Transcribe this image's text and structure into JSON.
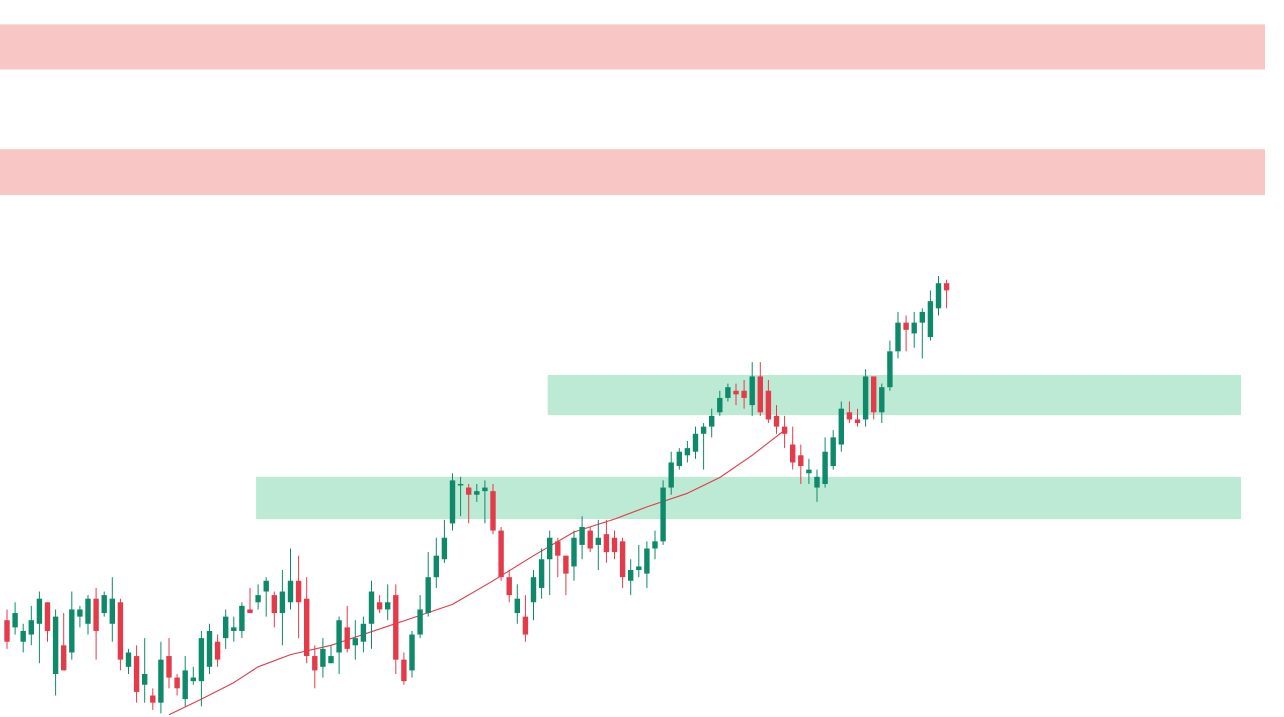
{
  "colors": {
    "background": "#ffffff",
    "bull": "#0e8a6a",
    "bear": "#e43b4b",
    "resistance_zone": "#f9c3c3",
    "support_zone": "#b6e8cf",
    "moving_average": "#e23a4d"
  },
  "chart_data": {
    "type": "candlestick",
    "x_unit": "bar index",
    "ylim": [
      0,
      100
    ],
    "grid": false,
    "axes_visible": false,
    "resistance_zones": [
      {
        "y_from": 90.3,
        "y_to": 96.6,
        "x_from": 0,
        "x_to": 157
      },
      {
        "y_from": 72.8,
        "y_to": 79.2,
        "x_from": 0,
        "x_to": 157
      }
    ],
    "support_zones": [
      {
        "y_from": 42.1,
        "y_to": 47.7,
        "x_from": 67,
        "x_to": 154
      },
      {
        "y_from": 27.6,
        "y_to": 33.5,
        "x_from": 31,
        "x_to": 154
      }
    ],
    "moving_average": {
      "x": [
        20,
        24,
        28,
        31,
        35,
        40,
        45,
        50,
        55,
        60,
        65,
        70,
        75,
        79,
        84,
        88,
        92,
        96
      ],
      "y": [
        0.3,
        2.5,
        4.8,
        7.0,
        8.7,
        10.0,
        11.9,
        13.8,
        15.7,
        19.0,
        22.5,
        25.8,
        27.6,
        29.3,
        31.2,
        33.4,
        36.5,
        40.0
      ]
    },
    "candles": [
      [
        15.0,
        9.5,
        13.5,
        10.5
      ],
      [
        16.0,
        11.5,
        12.5,
        14.5
      ],
      [
        13.0,
        9.0,
        10.5,
        12.0
      ],
      [
        15.5,
        10.0,
        11.5,
        13.5
      ],
      [
        17.5,
        7.5,
        13.0,
        16.5
      ],
      [
        16.0,
        10.5,
        16.0,
        12.0
      ],
      [
        15.0,
        3.0,
        6.0,
        14.0
      ],
      [
        14.5,
        8.0,
        10.0,
        6.5
      ],
      [
        17.5,
        8.0,
        9.0,
        15.0
      ],
      [
        15.5,
        12.5,
        14.0,
        15.0
      ],
      [
        17.0,
        11.5,
        13.0,
        16.5
      ],
      [
        18.0,
        8.0,
        16.5,
        12.0
      ],
      [
        17.5,
        14.0,
        14.5,
        17.0
      ],
      [
        19.5,
        10.5,
        13.0,
        16.5
      ],
      [
        16.5,
        6.5,
        16.0,
        8.0
      ],
      [
        9.5,
        6.0,
        7.0,
        9.0
      ],
      [
        10.0,
        2.0,
        8.5,
        3.5
      ],
      [
        11.0,
        2.0,
        4.5,
        6.0
      ],
      [
        4.0,
        1.0,
        3.0,
        2.0
      ],
      [
        10.5,
        0.5,
        2.0,
        8.0
      ],
      [
        11.0,
        4.0,
        8.5,
        5.5
      ],
      [
        6.0,
        3.0,
        5.5,
        4.0
      ],
      [
        8.5,
        1.5,
        2.5,
        6.5
      ],
      [
        7.0,
        4.5,
        5.0,
        5.5
      ],
      [
        12.0,
        1.5,
        5.0,
        11.0
      ],
      [
        13.0,
        6.0,
        7.0,
        12.0
      ],
      [
        11.5,
        7.0,
        10.5,
        8.0
      ],
      [
        15.0,
        9.5,
        11.0,
        14.0
      ],
      [
        14.0,
        10.5,
        12.0,
        12.5
      ],
      [
        16.0,
        11.0,
        12.0,
        15.5
      ],
      [
        18.0,
        14.5,
        15.0,
        14.5
      ],
      [
        18.5,
        15.0,
        16.0,
        17.0
      ],
      [
        19.5,
        14.0,
        17.5,
        19.0
      ],
      [
        17.5,
        12.5,
        17.0,
        14.5
      ],
      [
        20.5,
        10.0,
        14.5,
        17.5
      ],
      [
        23.5,
        15.0,
        16.0,
        19.0
      ],
      [
        22.5,
        11.0,
        19.0,
        16.0
      ],
      [
        19.5,
        7.5,
        16.5,
        8.5
      ],
      [
        10.0,
        4.0,
        8.5,
        6.5
      ],
      [
        11.0,
        5.5,
        7.0,
        9.5
      ],
      [
        10.0,
        7.5,
        7.5,
        8.5
      ],
      [
        14.0,
        6.0,
        9.0,
        13.5
      ],
      [
        15.5,
        9.0,
        12.5,
        9.5
      ],
      [
        13.5,
        8.0,
        10.0,
        11.0
      ],
      [
        14.0,
        9.0,
        10.5,
        13.0
      ],
      [
        19.0,
        9.5,
        13.0,
        17.5
      ],
      [
        17.0,
        14.5,
        16.0,
        15.0
      ],
      [
        18.5,
        13.5,
        15.0,
        16.0
      ],
      [
        18.5,
        6.0,
        17.0,
        8.0
      ],
      [
        9.0,
        4.5,
        8.0,
        5.0
      ],
      [
        12.0,
        5.5,
        6.5,
        11.5
      ],
      [
        17.0,
        11.0,
        11.5,
        15.0
      ],
      [
        23.0,
        14.0,
        14.5,
        19.5
      ],
      [
        25.0,
        18.0,
        19.5,
        22.5
      ],
      [
        27.5,
        21.5,
        22.0,
        25.0
      ],
      [
        34.0,
        26.0,
        27.0,
        33.0
      ],
      [
        33.5,
        28.0,
        32.5,
        32.5
      ],
      [
        32.5,
        27.0,
        32.0,
        31.0
      ],
      [
        32.5,
        30.0,
        31.0,
        31.5
      ],
      [
        33.0,
        27.0,
        31.5,
        32.0
      ],
      [
        32.5,
        25.5,
        31.5,
        26.0
      ],
      [
        26.5,
        19.0,
        26.0,
        19.5
      ],
      [
        20.5,
        16.0,
        19.5,
        17.0
      ],
      [
        18.5,
        13.0,
        14.5,
        16.5
      ],
      [
        17.0,
        10.5,
        14.0,
        11.5
      ],
      [
        20.5,
        13.5,
        16.0,
        19.5
      ],
      [
        23.5,
        16.5,
        18.0,
        22.0
      ],
      [
        26.0,
        17.0,
        22.0,
        25.0
      ],
      [
        25.0,
        19.5,
        24.5,
        22.5
      ],
      [
        22.5,
        17.0,
        22.5,
        20.0
      ],
      [
        26.0,
        19.0,
        21.0,
        25.0
      ],
      [
        28.0,
        22.0,
        24.0,
        26.5
      ],
      [
        26.5,
        23.0,
        26.0,
        23.5
      ],
      [
        27.5,
        20.5,
        24.0,
        25.0
      ],
      [
        27.5,
        21.5,
        25.5,
        23.0
      ],
      [
        26.0,
        22.0,
        25.0,
        23.0
      ],
      [
        25.0,
        18.0,
        24.5,
        19.5
      ],
      [
        22.0,
        17.0,
        19.0,
        20.5
      ],
      [
        24.0,
        19.5,
        20.5,
        21.0
      ],
      [
        24.5,
        18.0,
        20.0,
        23.5
      ],
      [
        26.0,
        22.0,
        23.5,
        24.5
      ],
      [
        33.0,
        24.0,
        24.5,
        32.0
      ],
      [
        37.0,
        31.0,
        32.0,
        35.5
      ],
      [
        37.5,
        34.5,
        35.0,
        37.0
      ],
      [
        38.5,
        35.5,
        36.5,
        37.5
      ],
      [
        40.5,
        36.0,
        37.0,
        39.5
      ],
      [
        41.0,
        34.5,
        39.5,
        40.5
      ],
      [
        43.0,
        39.0,
        40.5,
        42.0
      ],
      [
        45.5,
        42.0,
        42.5,
        44.5
      ],
      [
        46.5,
        44.0,
        44.5,
        46.0
      ],
      [
        46.5,
        43.5,
        45.5,
        45.0
      ],
      [
        47.0,
        43.0,
        45.5,
        44.5
      ],
      [
        49.5,
        42.0,
        43.5,
        47.5
      ],
      [
        49.5,
        42.0,
        47.5,
        42.5
      ],
      [
        47.0,
        41.0,
        45.5,
        41.5
      ],
      [
        43.5,
        39.5,
        42.0,
        40.5
      ],
      [
        42.0,
        37.5,
        40.5,
        39.5
      ],
      [
        40.5,
        34.5,
        38.0,
        35.5
      ],
      [
        38.0,
        32.5,
        36.5,
        35.0
      ],
      [
        36.0,
        32.5,
        34.0,
        34.5
      ],
      [
        34.5,
        30.0,
        32.0,
        33.5
      ],
      [
        39.0,
        32.0,
        32.5,
        37.0
      ],
      [
        40.0,
        34.5,
        35.0,
        39.0
      ],
      [
        44.0,
        37.0,
        38.0,
        43.0
      ],
      [
        44.0,
        41.0,
        42.5,
        41.5
      ],
      [
        43.0,
        40.5,
        41.5,
        41.0
      ],
      [
        48.5,
        40.5,
        41.5,
        47.5
      ],
      [
        47.5,
        41.5,
        47.5,
        42.5
      ],
      [
        46.5,
        41.0,
        42.5,
        46.0
      ],
      [
        52.5,
        45.5,
        46.0,
        51.0
      ],
      [
        56.5,
        50.0,
        51.0,
        55.0
      ],
      [
        56.0,
        51.0,
        55.0,
        54.0
      ],
      [
        56.5,
        51.5,
        53.5,
        55.0
      ],
      [
        57.0,
        50.0,
        55.0,
        56.5
      ],
      [
        59.5,
        52.5,
        53.0,
        58.0
      ],
      [
        61.5,
        56.0,
        57.0,
        60.5
      ],
      [
        61.0,
        57.0,
        60.5,
        59.5
      ]
    ]
  }
}
